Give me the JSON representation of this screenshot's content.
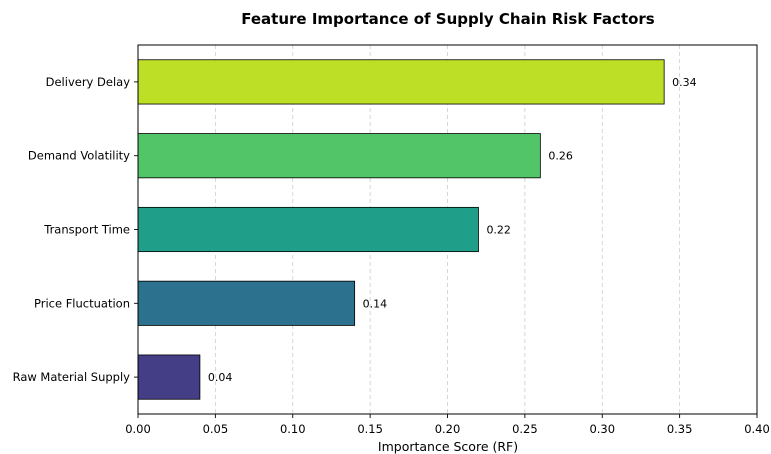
{
  "chart_data": {
    "type": "bar",
    "orientation": "horizontal",
    "title": "Feature Importance of Supply Chain Risk Factors",
    "xlabel": "Importance Score (RF)",
    "ylabel": "",
    "categories": [
      "Delivery Delay",
      "Demand Volatility",
      "Transport Time",
      "Price Fluctuation",
      "Raw Material Supply"
    ],
    "values": [
      0.34,
      0.26,
      0.22,
      0.14,
      0.04
    ],
    "value_labels": [
      "0.34",
      "0.26",
      "0.22",
      "0.14",
      "0.04"
    ],
    "colors": [
      "#bddf26",
      "#52c569",
      "#1f9e89",
      "#2c728e",
      "#433e85"
    ],
    "xlim": [
      0.0,
      0.4
    ],
    "xticks": [
      0.0,
      0.05,
      0.1,
      0.15,
      0.2,
      0.25,
      0.3,
      0.35,
      0.4
    ],
    "xtick_labels": [
      "0.00",
      "0.05",
      "0.10",
      "0.15",
      "0.20",
      "0.25",
      "0.30",
      "0.35",
      "0.40"
    ],
    "grid": {
      "x": true,
      "y": false,
      "style": "dashed"
    },
    "legend": "none"
  }
}
